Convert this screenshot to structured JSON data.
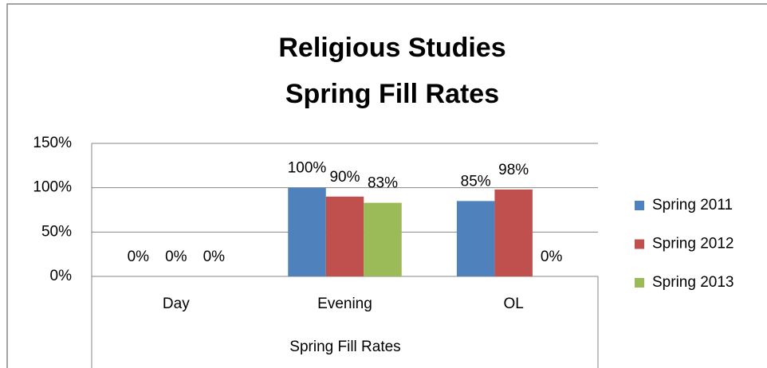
{
  "chart_data": {
    "type": "bar",
    "title": [
      "Religious Studies",
      "Spring Fill Rates"
    ],
    "x_label": "Spring Fill Rates",
    "categories": [
      "Day",
      "Evening",
      "OL"
    ],
    "series": [
      {
        "name": "Spring 2011",
        "color": "#4f81bd",
        "values": [
          0,
          100,
          85
        ],
        "value_labels": [
          "0%",
          "100%",
          "85%"
        ]
      },
      {
        "name": "Spring 2012",
        "color": "#c0504d",
        "values": [
          0,
          90,
          98
        ],
        "value_labels": [
          "0%",
          "90%",
          "98%"
        ]
      },
      {
        "name": "Spring 2013",
        "color": "#9bbb59",
        "values": [
          0,
          83,
          0
        ],
        "value_labels": [
          "0%",
          "83%",
          "0%"
        ]
      }
    ],
    "ylim": [
      0,
      150
    ],
    "yticks": [
      {
        "value": 0,
        "label": "0%"
      },
      {
        "value": 50,
        "label": "50%"
      },
      {
        "value": 100,
        "label": "100%"
      },
      {
        "value": 150,
        "label": "150%"
      }
    ],
    "grid": true,
    "legend": "right"
  }
}
